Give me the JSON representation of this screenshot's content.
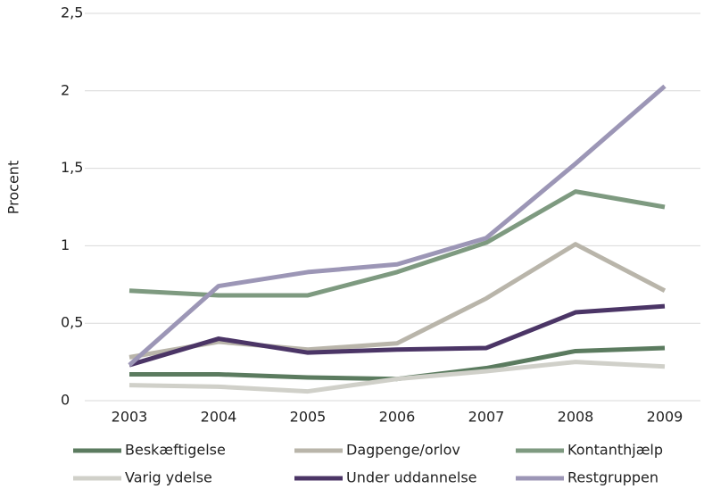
{
  "chart_data": {
    "type": "line",
    "y_label": "Procent",
    "categories": [
      "2003",
      "2004",
      "2005",
      "2006",
      "2007",
      "2008",
      "2009"
    ],
    "series": [
      {
        "name": "Beskæftigelse",
        "color": "#5b7b5f",
        "values": [
          0.17,
          0.17,
          0.15,
          0.14,
          0.21,
          0.32,
          0.34
        ]
      },
      {
        "name": "Dagpenge/orlov",
        "color": "#b9b5aa",
        "values": [
          0.28,
          0.38,
          0.33,
          0.37,
          0.66,
          1.01,
          0.71
        ]
      },
      {
        "name": "Kontanthjælp",
        "color": "#7e9a80",
        "values": [
          0.71,
          0.68,
          0.68,
          0.83,
          1.02,
          1.35,
          1.25
        ]
      },
      {
        "name": "Varig ydelse",
        "color": "#d0d0c9",
        "values": [
          0.1,
          0.09,
          0.06,
          0.14,
          0.19,
          0.25,
          0.22
        ]
      },
      {
        "name": "Under uddannelse",
        "color": "#4b3566",
        "values": [
          0.23,
          0.4,
          0.31,
          0.33,
          0.34,
          0.57,
          0.61
        ]
      },
      {
        "name": "Restgruppen",
        "color": "#9c96b6",
        "values": [
          0.23,
          0.74,
          0.83,
          0.88,
          1.05,
          1.53,
          2.03
        ]
      }
    ],
    "ylim": [
      0,
      2.5
    ],
    "yticks": [
      0,
      {
        "value": 0.5,
        "label": "0,5"
      },
      1,
      {
        "value": 1.5,
        "label": "1,5"
      },
      2,
      {
        "value": 2.5,
        "label": "2,5"
      }
    ],
    "grid": true
  }
}
